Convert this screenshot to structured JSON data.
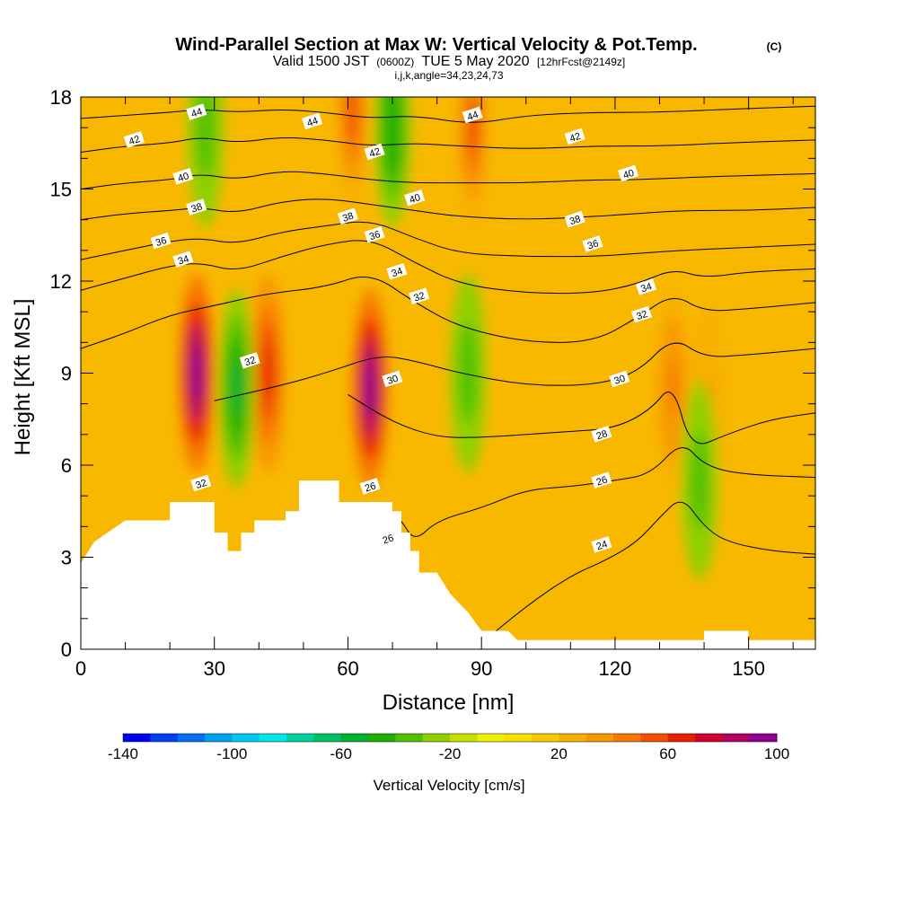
{
  "chart_data": {
    "type": "heatmap",
    "title": "Wind-Parallel Section at Max W: Vertical Velocity & Pot.Temp.",
    "title_mark": "(C)",
    "subtitle_prefix": "Valid 1500 JST",
    "subtitle_utc": "(0600Z)",
    "subtitle_date": "TUE 5 May 2020",
    "subtitle_fcst": "[12hrFcst@2149z]",
    "subtitle_grid": "i,j,k,angle=34,23,24,73",
    "xlabel": "Distance [nm]",
    "ylabel": "Height [Kft MSL]",
    "xlim": [
      0,
      165
    ],
    "ylim": [
      0,
      18
    ],
    "xticks": [
      {
        "v": 0,
        "label": "0"
      },
      {
        "v": 30,
        "label": "30"
      },
      {
        "v": 60,
        "label": "60"
      },
      {
        "v": 90,
        "label": "90"
      },
      {
        "v": 120,
        "label": "120"
      },
      {
        "v": 150,
        "label": "150"
      }
    ],
    "yticks": [
      {
        "v": 0,
        "label": "0"
      },
      {
        "v": 3,
        "label": "3"
      },
      {
        "v": 6,
        "label": "6"
      },
      {
        "v": 9,
        "label": "9"
      },
      {
        "v": 12,
        "label": "12"
      },
      {
        "v": 15,
        "label": "15"
      },
      {
        "v": 18,
        "label": "18"
      }
    ],
    "colorbar": {
      "label": "Vertical Velocity [cm/s]",
      "range": [
        -140,
        100
      ],
      "step": 10,
      "ticks": [
        {
          "v": -140,
          "label": "-140"
        },
        {
          "v": -100,
          "label": "-100"
        },
        {
          "v": -60,
          "label": "-60"
        },
        {
          "v": -20,
          "label": "-20"
        },
        {
          "v": 20,
          "label": "20"
        },
        {
          "v": 60,
          "label": "60"
        },
        {
          "v": 100,
          "label": "100"
        }
      ],
      "colors": [
        "#0000f0",
        "#0040f0",
        "#0070f0",
        "#00a0f0",
        "#00c8f0",
        "#00e8e8",
        "#00d0a0",
        "#00c060",
        "#00b030",
        "#20b000",
        "#50c000",
        "#90d000",
        "#c8e000",
        "#f0f000",
        "#f8e000",
        "#f8c800",
        "#f8b000",
        "#f89800",
        "#f87800",
        "#f05000",
        "#e82000",
        "#d00030",
        "#b00060",
        "#900090"
      ]
    },
    "updrafts": [
      {
        "x": 26,
        "z": 9,
        "w": 100
      },
      {
        "x": 42,
        "z": 9,
        "w": 60
      },
      {
        "x": 65,
        "z": 8.5,
        "w": 100
      },
      {
        "x": 88,
        "z": 17,
        "w": 55
      },
      {
        "x": 61,
        "z": 17.5,
        "w": 55
      },
      {
        "x": 133,
        "z": 8.5,
        "w": 40
      },
      {
        "x": 141,
        "z": 8,
        "w": 30
      }
    ],
    "downdrafts": [
      {
        "x": 35,
        "z": 8.5,
        "w": -55
      },
      {
        "x": 139,
        "z": 5.5,
        "w": -40
      },
      {
        "x": 70,
        "z": 17,
        "w": -50
      },
      {
        "x": 28,
        "z": 17,
        "w": -40
      },
      {
        "x": 87,
        "z": 9,
        "w": -40
      }
    ],
    "terrain_kft": [
      [
        0,
        2.8
      ],
      [
        3,
        3.5
      ],
      [
        7,
        3.9
      ],
      [
        10,
        4.2
      ],
      [
        20,
        4.2
      ],
      [
        20,
        4.8
      ],
      [
        30,
        4.8
      ],
      [
        30,
        3.8
      ],
      [
        33,
        3.8
      ],
      [
        33,
        3.2
      ],
      [
        36,
        3.2
      ],
      [
        36,
        3.8
      ],
      [
        39,
        3.8
      ],
      [
        39,
        4.2
      ],
      [
        46,
        4.2
      ],
      [
        46,
        4.5
      ],
      [
        49,
        4.5
      ],
      [
        49,
        5.5
      ],
      [
        58,
        5.5
      ],
      [
        58,
        4.8
      ],
      [
        70,
        4.8
      ],
      [
        70,
        4.5
      ],
      [
        72,
        4.5
      ],
      [
        72,
        3.8
      ],
      [
        74,
        3.8
      ],
      [
        74,
        3.2
      ],
      [
        76,
        3.2
      ],
      [
        76,
        2.5
      ],
      [
        80,
        2.5
      ],
      [
        83,
        1.8
      ],
      [
        87,
        1.2
      ],
      [
        90,
        0.6
      ],
      [
        96,
        0.6
      ],
      [
        98,
        0.3
      ],
      [
        112,
        0.3
      ],
      [
        140,
        0.3
      ],
      [
        140,
        0.6
      ],
      [
        150,
        0.6
      ],
      [
        150,
        0.3
      ],
      [
        165,
        0.3
      ]
    ],
    "theta_contours": [
      {
        "value": 24,
        "label": "24",
        "points": [
          [
            90,
            0.2
          ],
          [
            100,
            1.4
          ],
          [
            110,
            2.4
          ],
          [
            118,
            2.9
          ],
          [
            125,
            3.5
          ],
          [
            130,
            4.3
          ],
          [
            135,
            5.0
          ],
          [
            140,
            4.0
          ],
          [
            145,
            3.5
          ],
          [
            155,
            3.2
          ],
          [
            165,
            3.1
          ]
        ]
      },
      {
        "value": 26,
        "label": "26",
        "points": [
          [
            68,
            4.8
          ],
          [
            72,
            4.2
          ],
          [
            75,
            3.5
          ],
          [
            80,
            4.2
          ],
          [
            90,
            4.6
          ],
          [
            100,
            5.2
          ],
          [
            110,
            5.3
          ],
          [
            120,
            5.5
          ],
          [
            128,
            5.7
          ],
          [
            135,
            6.8
          ],
          [
            140,
            6.0
          ],
          [
            148,
            5.7
          ],
          [
            165,
            5.6
          ]
        ]
      },
      {
        "value": 28,
        "label": "28",
        "points": [
          [
            60,
            8.3
          ],
          [
            70,
            7.4
          ],
          [
            80,
            6.9
          ],
          [
            90,
            6.9
          ],
          [
            100,
            7.0
          ],
          [
            110,
            7.1
          ],
          [
            120,
            7.2
          ],
          [
            128,
            7.8
          ],
          [
            133,
            8.7
          ],
          [
            137,
            6.5
          ],
          [
            145,
            7.0
          ],
          [
            155,
            7.5
          ],
          [
            165,
            7.7
          ]
        ]
      },
      {
        "value": 30,
        "label": "30",
        "points": [
          [
            30,
            8.1
          ],
          [
            45,
            8.6
          ],
          [
            55,
            9.0
          ],
          [
            67,
            9.6
          ],
          [
            75,
            9.4
          ],
          [
            85,
            9.0
          ],
          [
            100,
            8.6
          ],
          [
            115,
            8.6
          ],
          [
            125,
            9.0
          ],
          [
            133,
            10.2
          ],
          [
            140,
            9.5
          ],
          [
            150,
            9.6
          ],
          [
            165,
            9.8
          ]
        ]
      },
      {
        "value": 32,
        "label": "32",
        "points": [
          [
            0,
            9.8
          ],
          [
            10,
            10.3
          ],
          [
            20,
            10.9
          ],
          [
            30,
            11.2
          ],
          [
            42,
            11.6
          ],
          [
            55,
            11.8
          ],
          [
            65,
            12.3
          ],
          [
            75,
            11.3
          ],
          [
            85,
            10.5
          ],
          [
            100,
            10.0
          ],
          [
            115,
            10.0
          ],
          [
            125,
            10.8
          ],
          [
            133,
            11.6
          ],
          [
            140,
            11.0
          ],
          [
            150,
            11.1
          ],
          [
            165,
            11.3
          ]
        ]
      },
      {
        "value": 34,
        "label": "34",
        "points": [
          [
            0,
            11.7
          ],
          [
            10,
            12.1
          ],
          [
            20,
            12.5
          ],
          [
            27,
            12.6
          ],
          [
            35,
            12.3
          ],
          [
            45,
            12.8
          ],
          [
            55,
            13.2
          ],
          [
            65,
            13.4
          ],
          [
            75,
            12.6
          ],
          [
            85,
            11.9
          ],
          [
            100,
            11.6
          ],
          [
            115,
            11.6
          ],
          [
            125,
            11.9
          ],
          [
            133,
            12.4
          ],
          [
            140,
            12.1
          ],
          [
            150,
            12.3
          ],
          [
            165,
            12.4
          ]
        ]
      },
      {
        "value": 36,
        "label": "36",
        "points": [
          [
            0,
            12.7
          ],
          [
            10,
            13.0
          ],
          [
            20,
            13.3
          ],
          [
            27,
            13.4
          ],
          [
            35,
            13.2
          ],
          [
            45,
            13.6
          ],
          [
            55,
            13.8
          ],
          [
            65,
            14.0
          ],
          [
            75,
            13.4
          ],
          [
            85,
            12.9
          ],
          [
            100,
            12.8
          ],
          [
            115,
            12.8
          ],
          [
            125,
            12.9
          ],
          [
            135,
            13.0
          ],
          [
            150,
            13.1
          ],
          [
            165,
            13.2
          ]
        ]
      },
      {
        "value": 38,
        "label": "38",
        "points": [
          [
            0,
            14.0
          ],
          [
            10,
            14.2
          ],
          [
            20,
            14.3
          ],
          [
            27,
            14.4
          ],
          [
            35,
            14.2
          ],
          [
            45,
            14.6
          ],
          [
            55,
            14.7
          ],
          [
            65,
            14.5
          ],
          [
            75,
            14.3
          ],
          [
            85,
            14.1
          ],
          [
            100,
            14.0
          ],
          [
            115,
            14.1
          ],
          [
            125,
            14.2
          ],
          [
            135,
            14.3
          ],
          [
            150,
            14.3
          ],
          [
            165,
            14.4
          ]
        ]
      },
      {
        "value": 40,
        "label": "40",
        "points": [
          [
            0,
            15.0
          ],
          [
            10,
            15.2
          ],
          [
            20,
            15.3
          ],
          [
            27,
            15.5
          ],
          [
            35,
            15.3
          ],
          [
            45,
            15.6
          ],
          [
            55,
            15.5
          ],
          [
            65,
            15.3
          ],
          [
            75,
            15.2
          ],
          [
            85,
            15.2
          ],
          [
            100,
            15.2
          ],
          [
            115,
            15.3
          ],
          [
            125,
            15.3
          ],
          [
            140,
            15.4
          ],
          [
            165,
            15.5
          ]
        ]
      },
      {
        "value": 42,
        "label": "42",
        "points": [
          [
            0,
            16.2
          ],
          [
            10,
            16.4
          ],
          [
            20,
            16.5
          ],
          [
            27,
            16.7
          ],
          [
            35,
            16.5
          ],
          [
            45,
            16.7
          ],
          [
            55,
            16.6
          ],
          [
            65,
            16.4
          ],
          [
            75,
            16.5
          ],
          [
            85,
            16.4
          ],
          [
            100,
            16.3
          ],
          [
            115,
            16.4
          ],
          [
            130,
            16.4
          ],
          [
            145,
            16.5
          ],
          [
            165,
            16.6
          ]
        ]
      },
      {
        "value": 44,
        "label": "44",
        "points": [
          [
            0,
            17.3
          ],
          [
            10,
            17.4
          ],
          [
            20,
            17.5
          ],
          [
            27,
            17.6
          ],
          [
            35,
            17.5
          ],
          [
            45,
            17.6
          ],
          [
            55,
            17.5
          ],
          [
            65,
            17.3
          ],
          [
            75,
            17.4
          ],
          [
            88,
            17.1
          ],
          [
            100,
            17.4
          ],
          [
            115,
            17.5
          ],
          [
            130,
            17.5
          ],
          [
            145,
            17.6
          ],
          [
            165,
            17.7
          ]
        ]
      }
    ],
    "contour_labels": [
      {
        "x": 26,
        "z": 17.5,
        "label": "44"
      },
      {
        "x": 52,
        "z": 17.2,
        "label": "44"
      },
      {
        "x": 88,
        "z": 17.4,
        "label": "44"
      },
      {
        "x": 12,
        "z": 16.6,
        "label": "42"
      },
      {
        "x": 66,
        "z": 16.2,
        "label": "42"
      },
      {
        "x": 111,
        "z": 16.7,
        "label": "42"
      },
      {
        "x": 23,
        "z": 15.4,
        "label": "40"
      },
      {
        "x": 75,
        "z": 14.7,
        "label": "40"
      },
      {
        "x": 123,
        "z": 15.5,
        "label": "40"
      },
      {
        "x": 26,
        "z": 14.4,
        "label": "38"
      },
      {
        "x": 60,
        "z": 14.1,
        "label": "38"
      },
      {
        "x": 111,
        "z": 14.0,
        "label": "38"
      },
      {
        "x": 18,
        "z": 13.3,
        "label": "36"
      },
      {
        "x": 66,
        "z": 13.5,
        "label": "36"
      },
      {
        "x": 115,
        "z": 13.2,
        "label": "36"
      },
      {
        "x": 23,
        "z": 12.7,
        "label": "34"
      },
      {
        "x": 71,
        "z": 12.3,
        "label": "34"
      },
      {
        "x": 127,
        "z": 11.8,
        "label": "34"
      },
      {
        "x": 76,
        "z": 11.5,
        "label": "32"
      },
      {
        "x": 126,
        "z": 10.9,
        "label": "32"
      },
      {
        "x": 38,
        "z": 9.4,
        "label": "32"
      },
      {
        "x": 27,
        "z": 5.4,
        "label": "32"
      },
      {
        "x": 70,
        "z": 8.8,
        "label": "30"
      },
      {
        "x": 121,
        "z": 8.8,
        "label": "30"
      },
      {
        "x": 117,
        "z": 7.0,
        "label": "28"
      },
      {
        "x": 65,
        "z": 5.3,
        "label": "26"
      },
      {
        "x": 117,
        "z": 5.5,
        "label": "26"
      },
      {
        "x": 69,
        "z": 3.6,
        "label": "26"
      },
      {
        "x": 117,
        "z": 3.4,
        "label": "24"
      }
    ]
  }
}
